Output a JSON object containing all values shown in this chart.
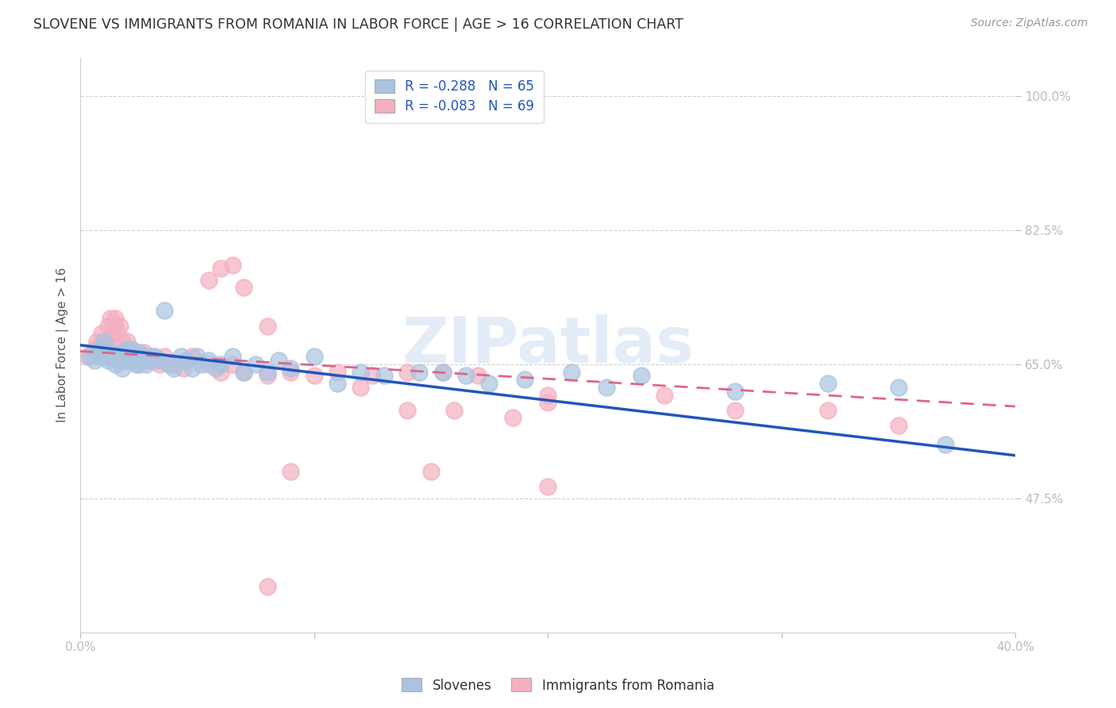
{
  "title": "SLOVENE VS IMMIGRANTS FROM ROMANIA IN LABOR FORCE | AGE > 16 CORRELATION CHART",
  "source": "Source: ZipAtlas.com",
  "ylabel": "In Labor Force | Age > 16",
  "x_min": 0.0,
  "x_max": 0.4,
  "y_min": 0.3,
  "y_max": 1.05,
  "y_ticks": [
    0.475,
    0.65,
    0.825,
    1.0
  ],
  "y_tick_labels": [
    "47.5%",
    "65.0%",
    "82.5%",
    "100.0%"
  ],
  "blue_R": -0.288,
  "blue_N": 65,
  "pink_R": -0.083,
  "pink_N": 69,
  "blue_color": "#aac4e0",
  "pink_color": "#f4b0c0",
  "blue_line_color": "#2255bb",
  "pink_line_color": "#dd6688",
  "watermark": "ZIPatlas",
  "legend_slovenes": "Slovenes",
  "legend_romania": "Immigrants from Romania",
  "blue_scatter_x": [
    0.004,
    0.006,
    0.007,
    0.008,
    0.009,
    0.01,
    0.01,
    0.011,
    0.012,
    0.013,
    0.014,
    0.015,
    0.016,
    0.017,
    0.018,
    0.018,
    0.019,
    0.02,
    0.02,
    0.021,
    0.022,
    0.022,
    0.023,
    0.024,
    0.025,
    0.026,
    0.027,
    0.028,
    0.03,
    0.031,
    0.032,
    0.034,
    0.036,
    0.038,
    0.04,
    0.043,
    0.045,
    0.048,
    0.05,
    0.052,
    0.055,
    0.058,
    0.06,
    0.065,
    0.07,
    0.075,
    0.08,
    0.085,
    0.09,
    0.1,
    0.11,
    0.12,
    0.13,
    0.145,
    0.155,
    0.165,
    0.175,
    0.19,
    0.21,
    0.225,
    0.24,
    0.28,
    0.32,
    0.35,
    0.37
  ],
  "blue_scatter_y": [
    0.66,
    0.655,
    0.665,
    0.67,
    0.66,
    0.68,
    0.67,
    0.66,
    0.655,
    0.665,
    0.66,
    0.65,
    0.66,
    0.655,
    0.645,
    0.665,
    0.66,
    0.67,
    0.655,
    0.66,
    0.67,
    0.655,
    0.66,
    0.65,
    0.665,
    0.655,
    0.66,
    0.65,
    0.655,
    0.66,
    0.66,
    0.655,
    0.72,
    0.65,
    0.645,
    0.66,
    0.655,
    0.645,
    0.66,
    0.65,
    0.655,
    0.645,
    0.65,
    0.66,
    0.64,
    0.65,
    0.64,
    0.655,
    0.645,
    0.66,
    0.625,
    0.64,
    0.635,
    0.64,
    0.64,
    0.635,
    0.625,
    0.63,
    0.64,
    0.62,
    0.635,
    0.615,
    0.625,
    0.62,
    0.545
  ],
  "pink_scatter_x": [
    0.003,
    0.005,
    0.006,
    0.007,
    0.008,
    0.009,
    0.01,
    0.01,
    0.011,
    0.012,
    0.012,
    0.013,
    0.014,
    0.015,
    0.015,
    0.016,
    0.017,
    0.018,
    0.018,
    0.019,
    0.02,
    0.02,
    0.021,
    0.022,
    0.023,
    0.024,
    0.025,
    0.026,
    0.027,
    0.028,
    0.029,
    0.03,
    0.032,
    0.034,
    0.036,
    0.04,
    0.044,
    0.048,
    0.055,
    0.06,
    0.065,
    0.07,
    0.08,
    0.09,
    0.1,
    0.11,
    0.125,
    0.14,
    0.155,
    0.17,
    0.055,
    0.06,
    0.065,
    0.07,
    0.08,
    0.12,
    0.14,
    0.16,
    0.185,
    0.2,
    0.09,
    0.15,
    0.2,
    0.25,
    0.2,
    0.28,
    0.32,
    0.35,
    0.08
  ],
  "pink_scatter_y": [
    0.66,
    0.665,
    0.67,
    0.68,
    0.675,
    0.69,
    0.68,
    0.67,
    0.665,
    0.675,
    0.7,
    0.71,
    0.69,
    0.71,
    0.7,
    0.69,
    0.7,
    0.68,
    0.66,
    0.67,
    0.68,
    0.67,
    0.66,
    0.665,
    0.655,
    0.66,
    0.65,
    0.66,
    0.665,
    0.66,
    0.655,
    0.66,
    0.655,
    0.65,
    0.66,
    0.65,
    0.645,
    0.66,
    0.65,
    0.64,
    0.65,
    0.64,
    0.635,
    0.64,
    0.635,
    0.64,
    0.635,
    0.64,
    0.64,
    0.635,
    0.76,
    0.775,
    0.78,
    0.75,
    0.7,
    0.62,
    0.59,
    0.59,
    0.58,
    0.6,
    0.51,
    0.51,
    0.61,
    0.61,
    0.49,
    0.59,
    0.59,
    0.57,
    0.36
  ]
}
